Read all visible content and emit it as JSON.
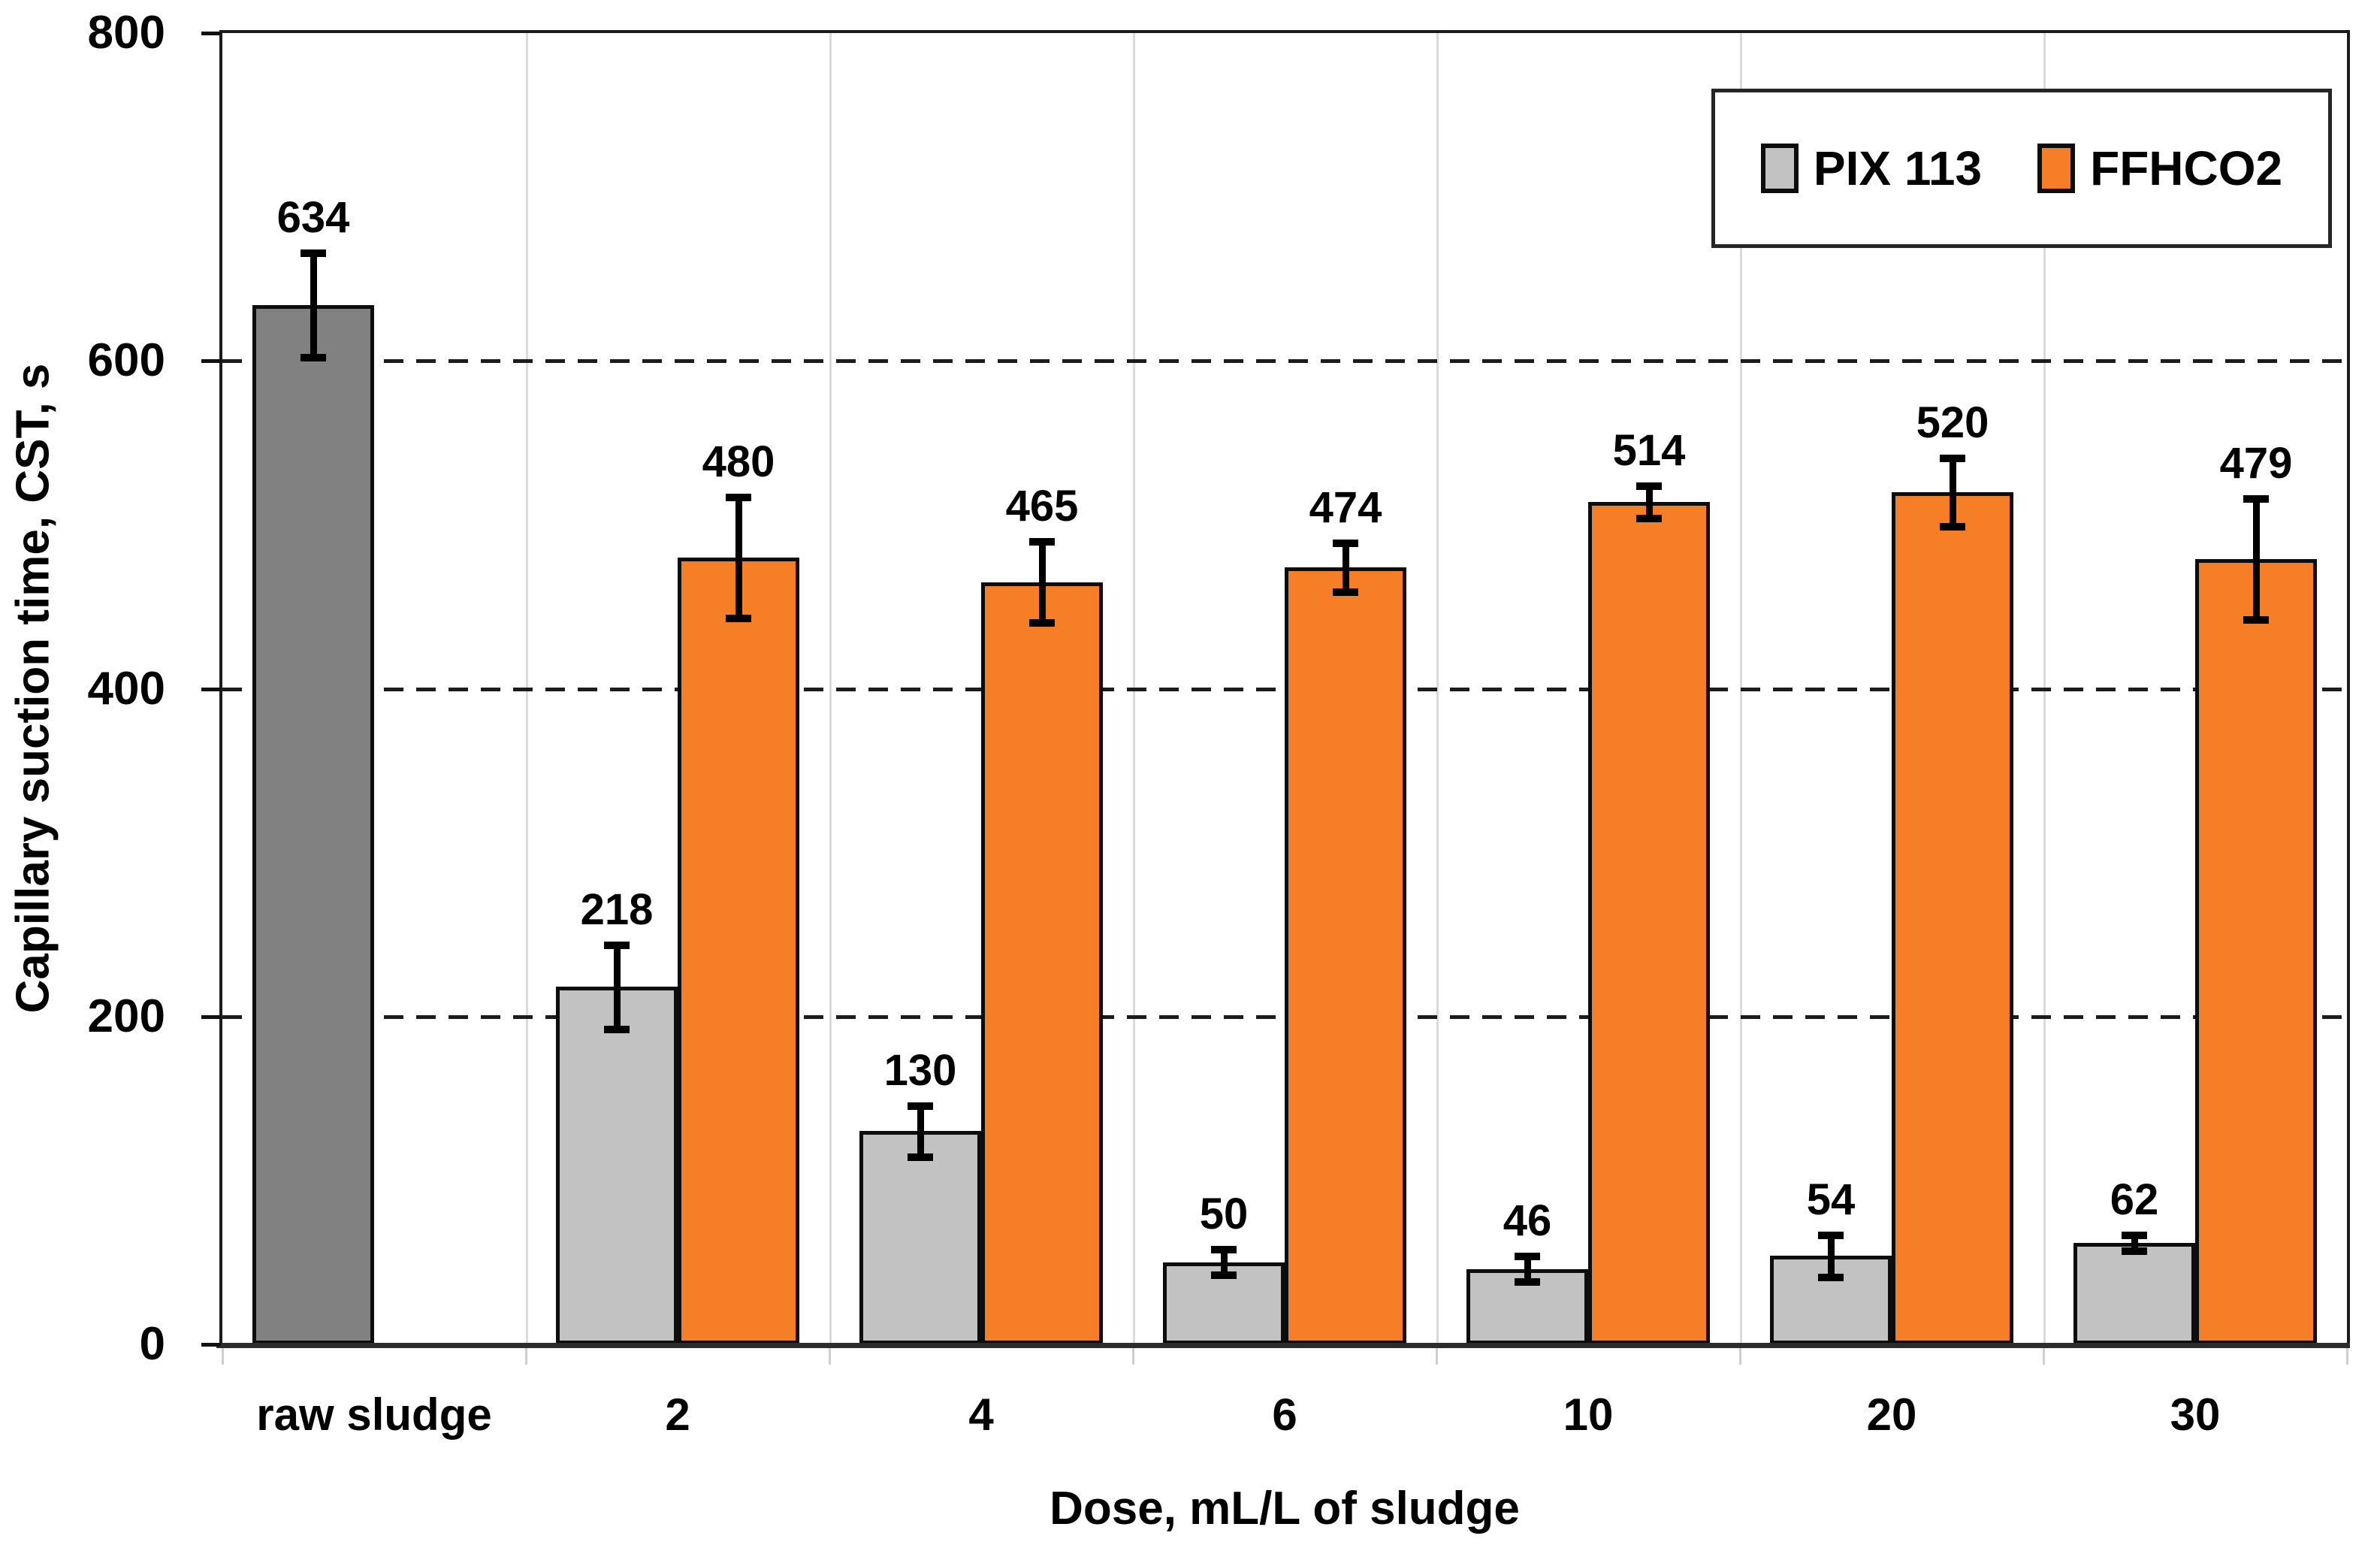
{
  "chart_data": {
    "type": "bar",
    "title": "",
    "xlabel": "Dose, mL/L of sludge",
    "ylabel": "Capillary suction time, CST, s",
    "categories": [
      "raw sludge",
      "2",
      "4",
      "6",
      "10",
      "20",
      "30"
    ],
    "y_ticks": [
      0,
      200,
      400,
      600,
      800
    ],
    "ylim": [
      0,
      800
    ],
    "h_gridlines_dashed": [
      200,
      400,
      600
    ],
    "grid": true,
    "bar_labels_shown": true,
    "legend": {
      "position": "top-right",
      "entries": [
        "PIX 113",
        "FFHCO2"
      ]
    },
    "series": [
      {
        "name": "raw sludge",
        "color": "#818181",
        "show_in_legend": false,
        "slot": "left",
        "values": [
          634,
          null,
          null,
          null,
          null,
          null,
          null
        ],
        "errors": [
          32,
          null,
          null,
          null,
          null,
          null,
          null
        ]
      },
      {
        "name": "PIX 113",
        "color": "#c2c2c2",
        "show_in_legend": true,
        "slot": "left",
        "values": [
          null,
          218,
          130,
          50,
          46,
          54,
          62
        ],
        "errors": [
          null,
          26,
          16,
          8,
          8,
          13,
          5
        ]
      },
      {
        "name": "FFHCO2",
        "color": "#f57e27",
        "show_in_legend": true,
        "slot": "right",
        "values": [
          null,
          480,
          465,
          474,
          514,
          520,
          479
        ],
        "errors": [
          null,
          37,
          25,
          15,
          10,
          21,
          37
        ]
      }
    ],
    "palette": {
      "raw_bar": "#818181",
      "pix_bar": "#c2c2c2",
      "ffhco2_bar": "#f57e27",
      "bar_border": "#0d0d0d",
      "vertical_grid": "#dbdbdb",
      "dashed_grid": "#1c1c1c",
      "axis": "#2c2c2c",
      "text": "#000000"
    }
  }
}
